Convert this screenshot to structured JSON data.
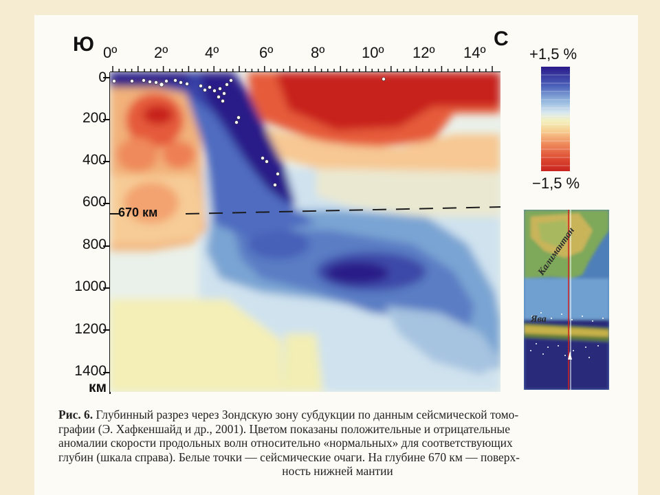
{
  "figure": {
    "direction_left": "Ю",
    "direction_right": "С",
    "longitude_ticks": [
      "0º",
      "2º",
      "4º",
      "6º",
      "8º",
      "10º",
      "12º",
      "14º"
    ],
    "depth_ticks": [
      "0",
      "200",
      "400",
      "600",
      "800",
      "1000",
      "1200",
      "1400"
    ],
    "depth_unit": "км",
    "boundary_label": "670 км",
    "colorbar_top": "+1,5 %",
    "colorbar_bottom": "−1,5 %",
    "map_labels": {
      "kalimantan": "Калимантан",
      "java": "Ява"
    },
    "colors": {
      "fast_anomaly": "#2a1a88",
      "slow_anomaly": "#c8241e",
      "neutral": "#f4f0be"
    }
  },
  "caption": {
    "label": "Рис. 6.",
    "line1": " Глубинный разрез через Зондскую зону субдукции по данным сейсмической томо-",
    "line2": "графии (Э. Хафкеншайд и др., 2001). Цветом показаны положительные и отрицательные",
    "line3": "аномалии скорости продольных волн относительно «нормальных» для соответствующих",
    "line4": "глубин (шкала справа). Белые точки — сейсмические очаги. На глубине 670 км — поверх-",
    "line5": "ность нижней мантии"
  }
}
